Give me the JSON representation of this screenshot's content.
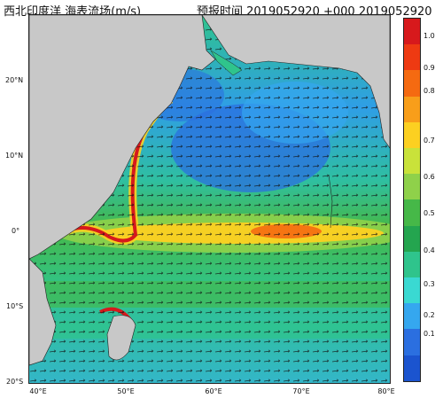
{
  "header": {
    "left_title": "西北印度洋 海表流场(m/s)",
    "right_title": "预报时间 2019052920 +000 2019052920"
  },
  "map": {
    "region": "Northwestern Indian Ocean surface current field",
    "land_color": "#c8c8c8",
    "lat_labels": [
      "20°N",
      "10°N",
      "0°",
      "10°S",
      "20°S"
    ],
    "lon_labels": [
      "40°E",
      "50°E",
      "60°E",
      "70°E",
      "80°E"
    ]
  },
  "colorbar": {
    "labels": [
      "1.0",
      "0.9",
      "0.8",
      "0.7",
      "0.6",
      "0.5",
      "0.4",
      "0.3",
      "0.2",
      "0.1"
    ],
    "colors": [
      "#d7191c",
      "#ee3a12",
      "#f56a11",
      "#f89e1a",
      "#fcd021",
      "#c9e23a",
      "#8fd14a",
      "#46b848",
      "#24a54f",
      "#2fc48c",
      "#3ad9d2",
      "#35a7ef",
      "#2b6fe0",
      "#1b54cf"
    ]
  }
}
